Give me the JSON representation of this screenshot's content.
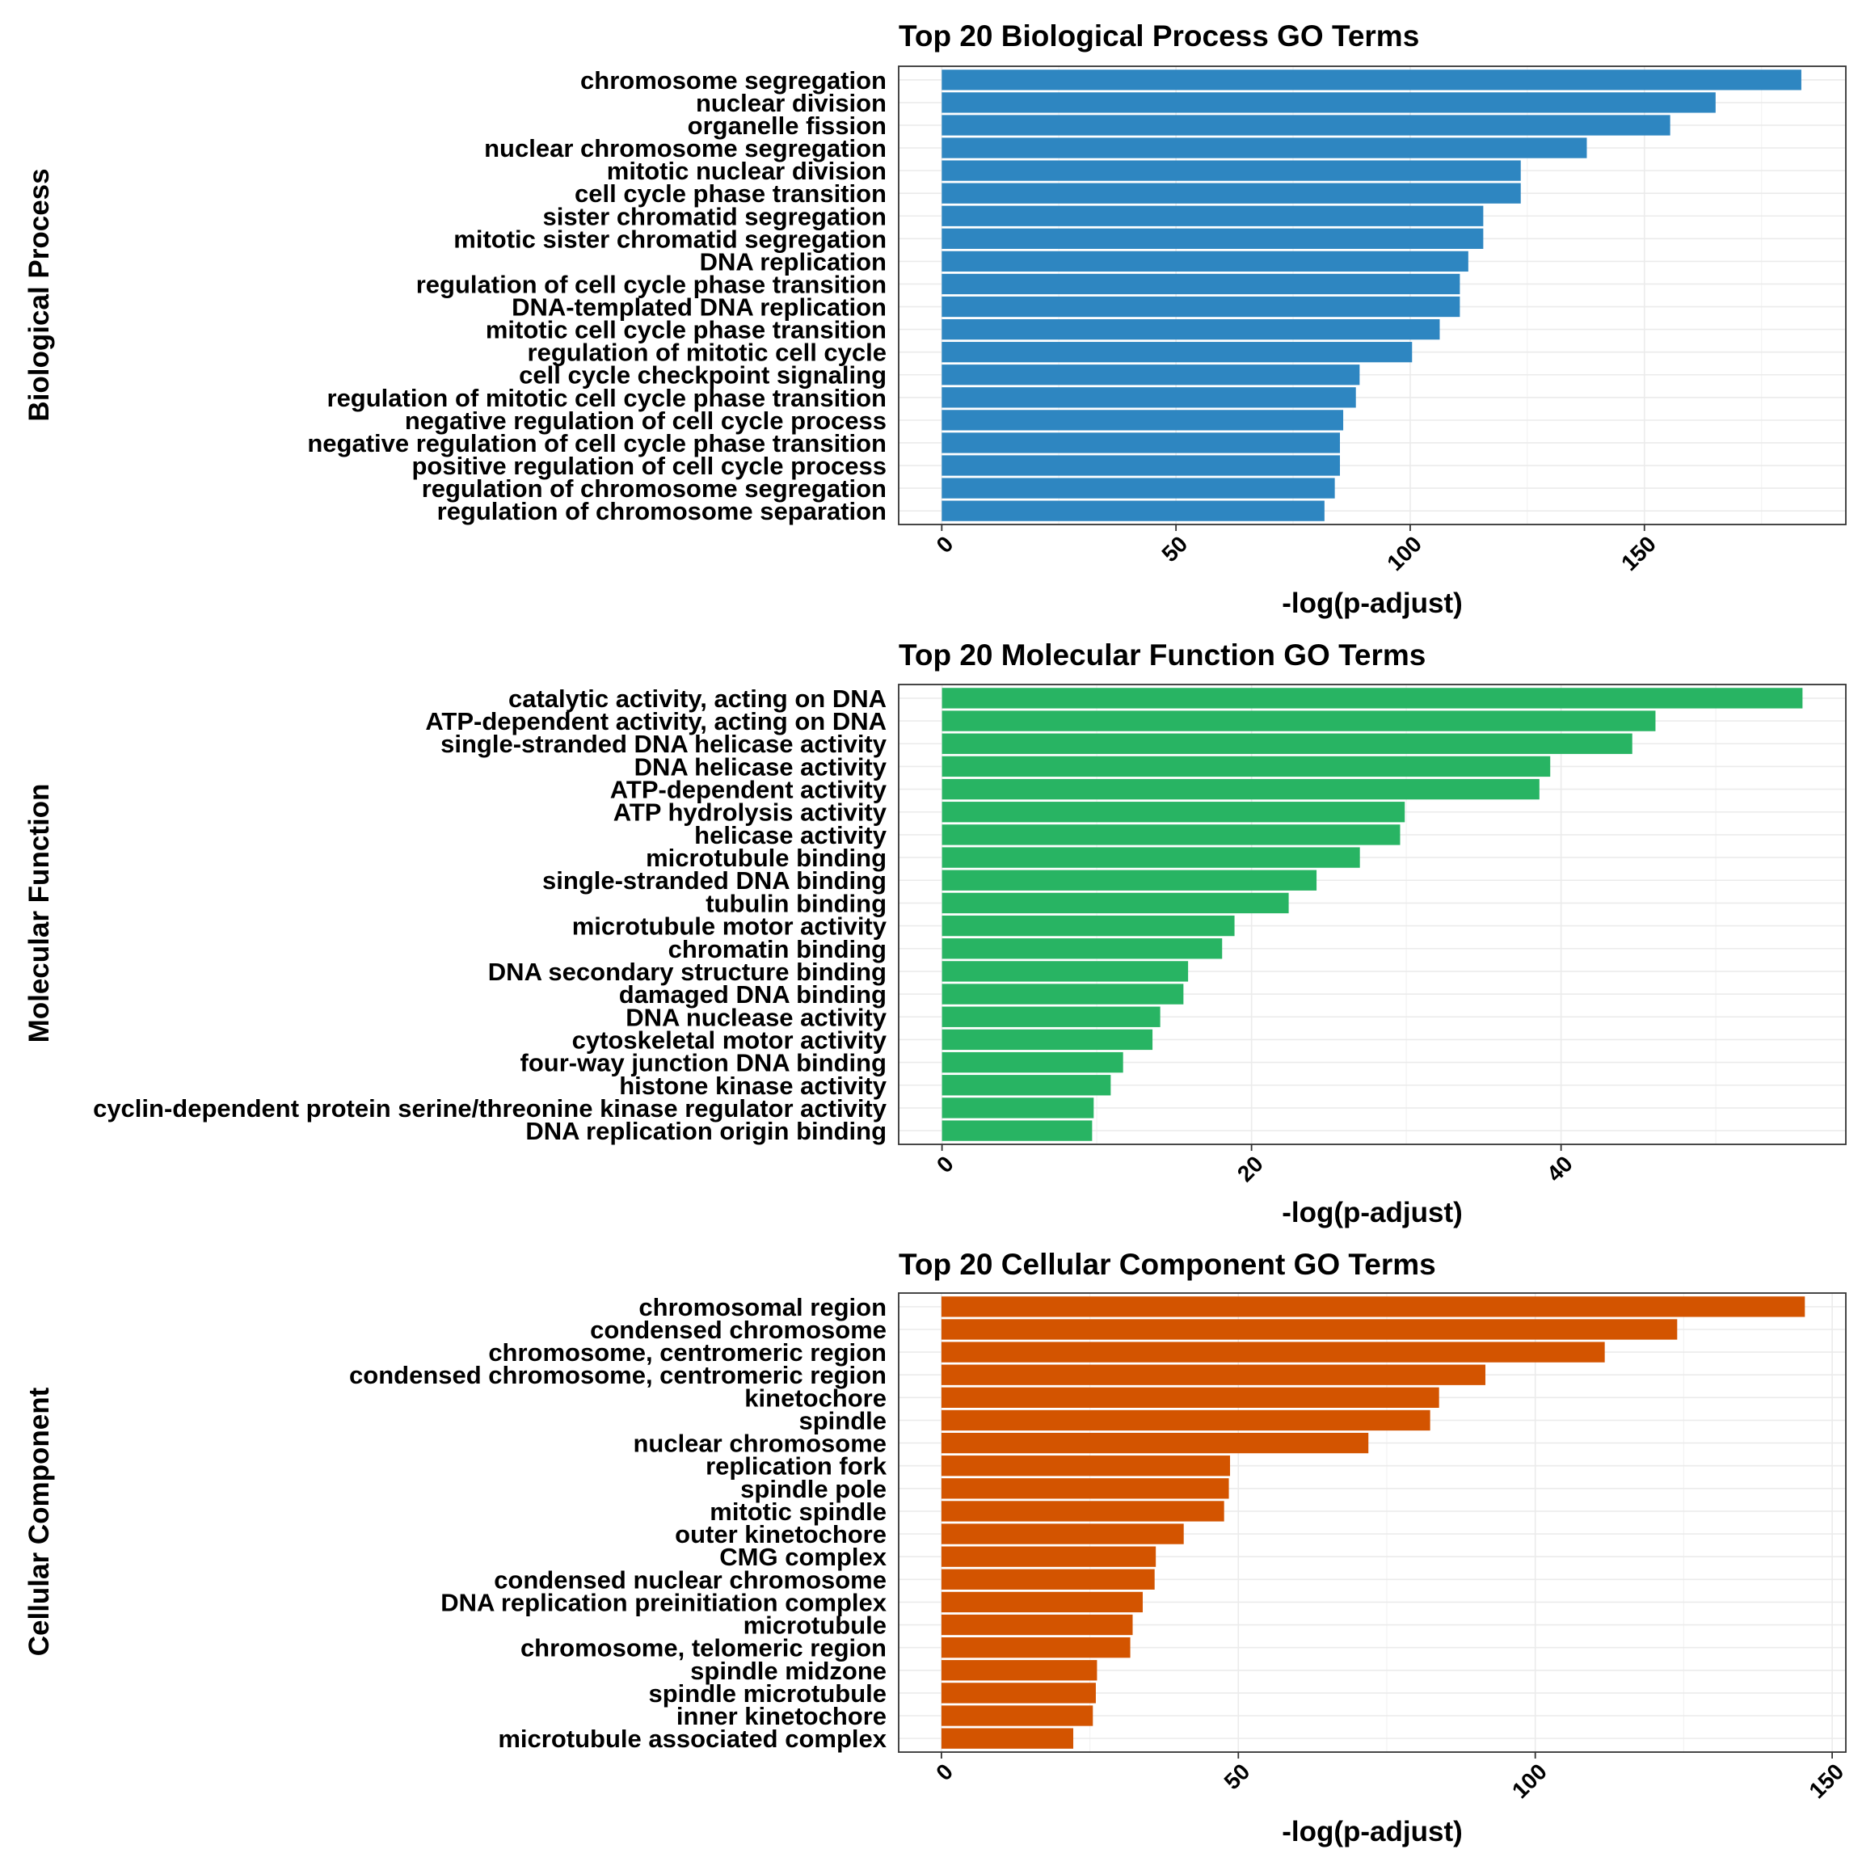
{
  "chart_data": [
    {
      "type": "bar",
      "orientation": "horizontal",
      "title": "Top 20 Biological Process GO Terms",
      "xlabel": "-log(p-adjust)",
      "ylabel": "Biological Process",
      "xlim": [
        -9.2,
        193
      ],
      "xticks": [
        0,
        50,
        100,
        150
      ],
      "grid": true,
      "color": "#2E86C1",
      "categories": [
        "chromosome segregation",
        "nuclear division",
        "organelle fission",
        "nuclear chromosome segregation",
        "mitotic nuclear division",
        "cell cycle phase transition",
        "sister chromatid segregation",
        "mitotic sister chromatid segregation",
        "DNA replication",
        "regulation of cell cycle phase transition",
        "DNA-templated DNA replication",
        "mitotic cell cycle phase transition",
        "regulation of mitotic cell cycle",
        "cell cycle checkpoint signaling",
        "regulation of mitotic cell cycle phase transition",
        "negative regulation of cell cycle process",
        "negative regulation of cell cycle phase transition",
        "positive regulation of cell cycle process",
        "regulation of chromosome segregation",
        "regulation of chromosome separation"
      ],
      "values": [
        183.5,
        165.2,
        155.5,
        137.7,
        123.6,
        123.6,
        115.6,
        115.6,
        112.4,
        110.6,
        110.6,
        106.3,
        100.4,
        89.2,
        88.4,
        85.7,
        85.0,
        85.0,
        83.9,
        81.7
      ]
    },
    {
      "type": "bar",
      "orientation": "horizontal",
      "title": "Top 20 Molecular Function GO Terms",
      "xlabel": "-log(p-adjust)",
      "ylabel": "Molecular Function",
      "xlim": [
        -2.8,
        58.4
      ],
      "xticks": [
        0,
        20,
        40
      ],
      "grid": true,
      "color": "#28B463",
      "categories": [
        "catalytic activity, acting on DNA",
        "ATP-dependent activity, acting on DNA",
        "single-stranded DNA helicase activity",
        "DNA helicase activity",
        "ATP-dependent activity",
        "ATP hydrolysis activity",
        "helicase activity",
        "microtubule binding",
        "single-stranded DNA binding",
        "tubulin binding",
        "microtubule motor activity",
        "chromatin binding",
        "DNA secondary structure binding",
        "damaged DNA binding",
        "DNA nuclease activity",
        "cytoskeletal motor activity",
        "four-way junction DNA binding",
        "histone kinase activity",
        "cyclin-dependent protein serine/threonine kinase regulator activity",
        "DNA replication origin binding"
      ],
      "values": [
        55.6,
        46.1,
        44.6,
        39.3,
        38.6,
        29.9,
        29.6,
        27.0,
        24.2,
        22.4,
        18.9,
        18.1,
        15.9,
        15.6,
        14.1,
        13.6,
        11.7,
        10.9,
        9.8,
        9.7
      ]
    },
    {
      "type": "bar",
      "orientation": "horizontal",
      "title": "Top 20 Cellular Component GO Terms",
      "xlabel": "-log(p-adjust)",
      "ylabel": "Cellular Component",
      "xlim": [
        -7.2,
        152.3
      ],
      "xticks": [
        0,
        50,
        100,
        150
      ],
      "grid": true,
      "color": "#D35400",
      "categories": [
        "chromosomal region",
        "condensed chromosome",
        "chromosome, centromeric region",
        "condensed chromosome, centromeric region",
        "kinetochore",
        "spindle",
        "nuclear chromosome",
        "replication fork",
        "spindle pole",
        "mitotic spindle",
        "outer kinetochore",
        "CMG complex",
        "condensed nuclear chromosome",
        "DNA replication preinitiation complex",
        "microtubule",
        "chromosome, telomeric region",
        "spindle midzone",
        "spindle microtubule",
        "inner kinetochore",
        "microtubule associated complex"
      ],
      "values": [
        145.4,
        123.9,
        111.7,
        91.6,
        83.8,
        82.3,
        71.9,
        48.6,
        48.4,
        47.6,
        40.8,
        36.1,
        35.9,
        33.9,
        32.2,
        31.8,
        26.2,
        26.0,
        25.5,
        22.2
      ]
    }
  ]
}
